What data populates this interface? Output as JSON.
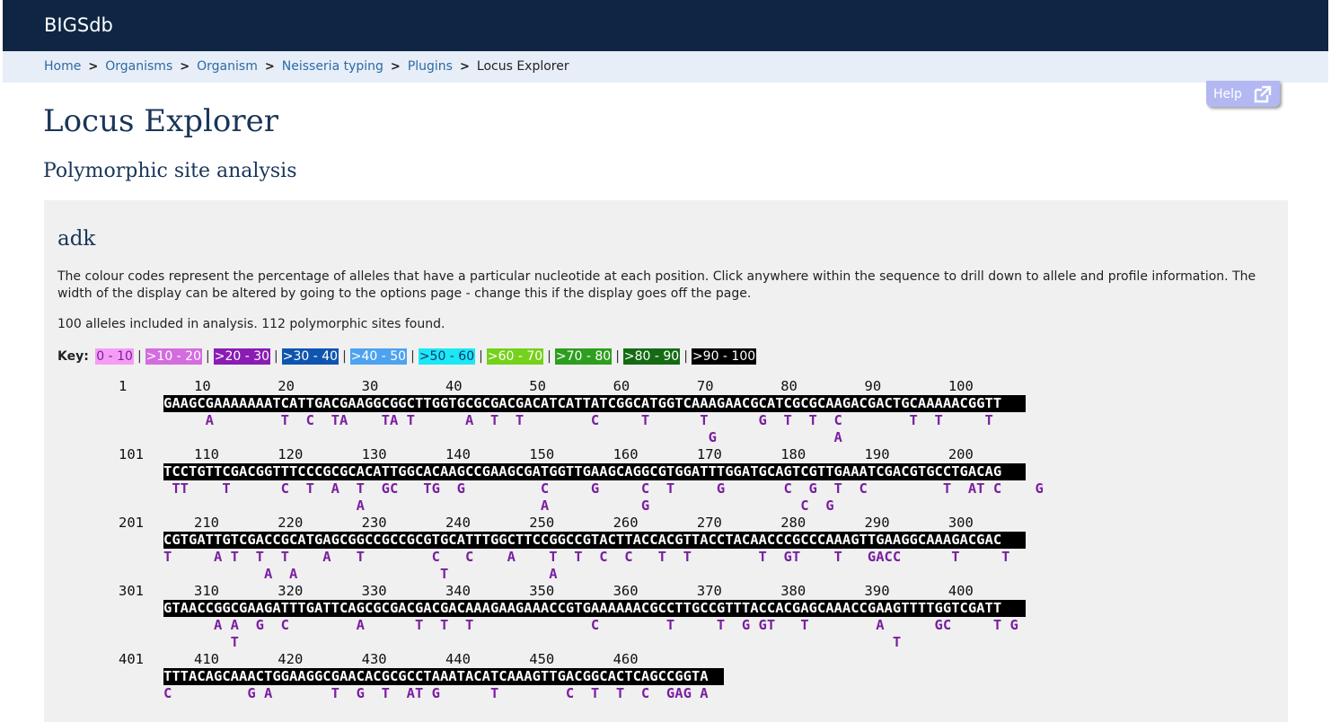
{
  "app": {
    "brand": "BIGSdb"
  },
  "breadcrumb": [
    "Home",
    "Organisms",
    "Organism",
    "Neisseria typing",
    "Plugins",
    "Locus Explorer"
  ],
  "help": {
    "label": "Help",
    "icon": "external-link-icon"
  },
  "page": {
    "title": "Locus Explorer",
    "subtitle": "Polymorphic site analysis"
  },
  "locus": {
    "name": "adk",
    "description": "The colour codes represent the percentage of alleles that have a particular nucleotide at each position. Click anywhere within the sequence to drill down to allele and profile information. The width of the display can be altered by going to the options page - change this if the display goes off the page.",
    "summary": "100 alleles included in analysis. 112 polymorphic sites found."
  },
  "key": {
    "label": "Key:",
    "ranges": [
      {
        "label": "0 - 10",
        "bg": "#f59df5",
        "fg": "#7a1fa0"
      },
      {
        "label": ">10 - 20",
        "bg": "#d46ce0",
        "fg": "#ffffff"
      },
      {
        "label": ">20 - 30",
        "bg": "#8a1bb5",
        "fg": "#ffffff"
      },
      {
        "label": ">30 - 40",
        "bg": "#0f55b0",
        "fg": "#ffffff"
      },
      {
        "label": ">40 - 50",
        "bg": "#4da3f0",
        "fg": "#ffffff"
      },
      {
        "label": ">50 - 60",
        "bg": "#1ce8f5",
        "fg": "#0f3570"
      },
      {
        "label": ">60 - 70",
        "bg": "#75d11a",
        "fg": "#ffffff"
      },
      {
        "label": ">70 - 80",
        "bg": "#2e9e1f",
        "fg": "#ffffff"
      },
      {
        "label": ">80 - 90",
        "bg": "#146b14",
        "fg": "#ffffff"
      },
      {
        "label": ">90 - 100",
        "bg": "#000000",
        "fg": "#ffffff"
      }
    ]
  },
  "sequence": {
    "blocks": [
      {
        "numbers": "1        10        20        30        40        50        60        70        80        90        100",
        "consensus": "GAAGCGAAAAAAATCATTGACGAAGGCGGCTTGGTGCGCGACGACATCATTATCGGCATGGTCAAAGAACGCATCGCGCAAGACGACTGCAAAAACGGTT",
        "mut1": "     A        T  C  TA    TA T      A  T  T        C     T      T      G  T  T  C        T  T     T   ",
        "mut2": "                                                                 G              A                    "
      },
      {
        "numbers": "101      110       120       130       140       150       160       170       180       190       200",
        "consensus": "TCCTGTTCGACGGTTTCCCGCGCACATTGGCACAAGCCGAAGCGATGGTTGAAGCAGGCGTGGATTTGGATGCAGTCGTTGAAATCGACGTGCCTGACAG",
        "mut1": " TT    T      C  T  A  T  GC   TG  G         C     G     C  T     G       C  G  T  C         T  AT C    G",
        "mut2": "                       A                     A           G                  C  G                         "
      },
      {
        "numbers": "201      210       220       230       240       250       260       270       280       290       300",
        "consensus": "CGTGATTGTCGACCGCATGAGCGGCCGCCGCGTGCATTTGGCTTCCGGCCGTACTTACCACGTTACCTACAACCCGCCCAAAGTTGAAGGCAAAGACGAC",
        "mut1": "T     A T  T  T    A   T        C   C    A    T  T  C  C   T  T        T  GT    T   GACC      T     T  ",
        "mut2": "            A  A                 T            A                                                      "
      },
      {
        "numbers": "301      310       320       330       340       350       360       370       380       390       400",
        "consensus": "GTAACCGGCGAAGATTTGATTCAGCGCGACGACGACAAAGAAGAAACCGTGAAAAAACGCCTTGCCGTTTACCACGAGCAAACCGAAGTTTTGGTCGATT",
        "mut1": "      A A  G  C        A      T  T  T              C        T     T  G GT   T        A      GC     T G  ",
        "mut2": "        T                                                                              T                 "
      },
      {
        "numbers": "401      410       420       430       440       450       460",
        "consensus": "TTTACAGCAAACTGGAAGGCGAACACGCGCCTAAATACATCAAAGTTGACGGCACTCAGCCGGTA",
        "mut1": "C         G A       T  G  T  AT G      T        C  T  T  C  GAG A",
        "mut2": ""
      }
    ]
  }
}
